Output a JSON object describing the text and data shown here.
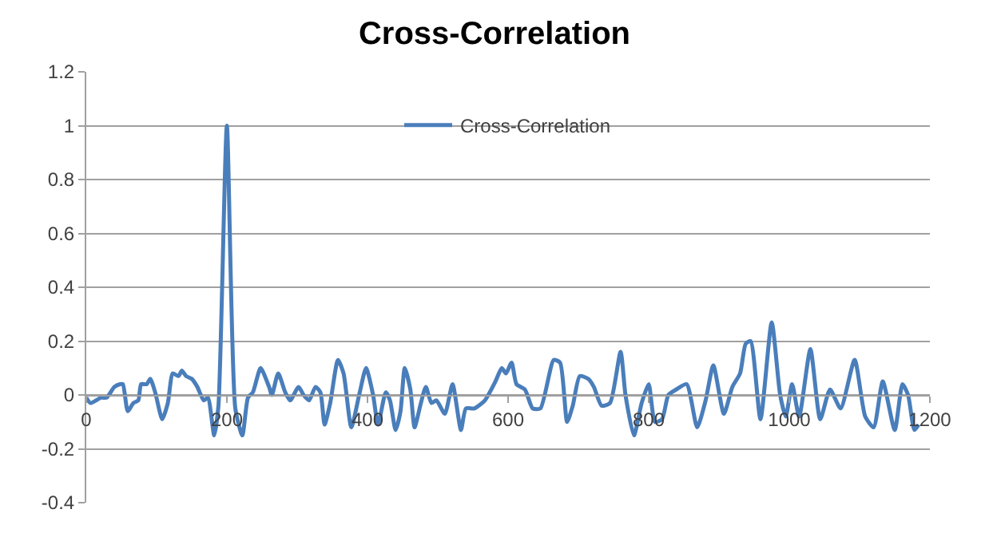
{
  "chart_data": {
    "type": "line",
    "title": "Cross-Correlation",
    "legend": "top",
    "grid": "y",
    "marker": "none",
    "line_style": "solid",
    "xlim": [
      0,
      1200
    ],
    "xticks": [
      0,
      200,
      400,
      600,
      800,
      1000,
      1200
    ],
    "ylim": [
      -0.4,
      1.2
    ],
    "yticks": [
      -0.4,
      -0.2,
      0,
      0.2,
      0.4,
      0.6,
      0.8,
      1,
      1.2
    ],
    "series": [
      {
        "name": "Cross-Correlation",
        "color": "#4a7ebb",
        "x": [
          0,
          6,
          21,
          29,
          40,
          48,
          52,
          59,
          67,
          74,
          78,
          86,
          91,
          98,
          108,
          116,
          123,
          131,
          136,
          142,
          150,
          158,
          167,
          173,
          182,
          188,
          200,
          212,
          222,
          230,
          237,
          248,
          260,
          264,
          273,
          283,
          290,
          302,
          309,
          317,
          326,
          333,
          339,
          347,
          358,
          366,
          377,
          389,
          398,
          408,
          415,
          426,
          432,
          440,
          447,
          453,
          461,
          467,
          476,
          483,
          491,
          498,
          510,
          521,
          533,
          540,
          552,
          567,
          582,
          591,
          597,
          605,
          612,
          624,
          635,
          646,
          665,
          674,
          684,
          692,
          702,
          714,
          722,
          733,
          745,
          760,
          767,
          779,
          790,
          800,
          809,
          819,
          828,
          839,
          854,
          869,
          881,
          892,
          907,
          919,
          930,
          938,
          945,
          959,
          975,
          987,
          995,
          1004,
          1014,
          1030,
          1044,
          1058,
          1073,
          1093,
          1108,
          1120,
          1133,
          1150,
          1161,
          1169,
          1178,
          1184
        ],
        "values": [
          -0.01,
          -0.03,
          -0.01,
          -0.01,
          0.03,
          0.04,
          0.04,
          -0.06,
          -0.03,
          -0.02,
          0.04,
          0.04,
          0.06,
          0.01,
          -0.09,
          -0.03,
          0.08,
          0.07,
          0.09,
          0.07,
          0.06,
          0.03,
          -0.02,
          -0.01,
          -0.15,
          -0.04,
          1.0,
          -0.05,
          -0.15,
          -0.01,
          0.01,
          0.1,
          0.03,
          0.0,
          0.08,
          0.01,
          -0.02,
          0.03,
          0.0,
          -0.02,
          0.03,
          0.01,
          -0.11,
          -0.03,
          0.13,
          0.08,
          -0.12,
          0.01,
          0.1,
          0.0,
          -0.11,
          0.01,
          -0.02,
          -0.13,
          -0.06,
          0.1,
          0.02,
          -0.12,
          -0.03,
          0.03,
          -0.03,
          -0.02,
          -0.07,
          0.04,
          -0.13,
          -0.05,
          -0.05,
          -0.02,
          0.05,
          0.1,
          0.08,
          0.12,
          0.04,
          0.02,
          -0.05,
          -0.05,
          0.13,
          0.12,
          -0.1,
          -0.04,
          0.07,
          0.06,
          0.03,
          -0.04,
          -0.03,
          0.16,
          0.0,
          -0.15,
          -0.03,
          0.04,
          -0.1,
          -0.09,
          0.0,
          0.02,
          0.04,
          -0.12,
          -0.02,
          0.11,
          -0.07,
          0.03,
          0.08,
          0.19,
          0.2,
          -0.09,
          0.27,
          0.0,
          -0.08,
          0.04,
          -0.08,
          0.17,
          -0.09,
          0.02,
          -0.05,
          0.13,
          -0.08,
          -0.12,
          0.05,
          -0.13,
          0.04,
          0.0,
          -0.13,
          -0.11
        ]
      }
    ]
  }
}
